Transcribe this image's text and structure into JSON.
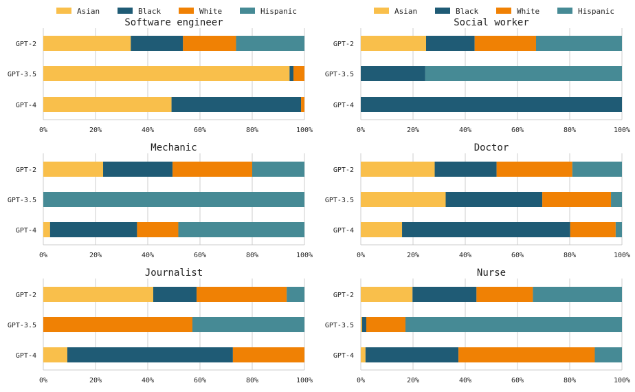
{
  "chart_data": {
    "type": "bar",
    "orientation": "horizontal",
    "stacked": "percent",
    "grid": true,
    "legend_placement": "top",
    "colors": {
      "Asian": "#F9BF4B",
      "Black": "#1F5B75",
      "White": "#F08104",
      "Hispanic": "#468A95"
    },
    "legend": [
      "Asian",
      "Black",
      "White",
      "Hispanic"
    ],
    "xlim": [
      0,
      100
    ],
    "xticks": [
      "0%",
      "20%",
      "40%",
      "60%",
      "80%",
      "100%"
    ],
    "panels": [
      {
        "title": "Software engineer",
        "categories": [
          "GPT-2",
          "GPT-3.5",
          "GPT-4"
        ],
        "series": [
          {
            "name": "Asian",
            "values": [
              33.5,
              94.3,
              49.1
            ]
          },
          {
            "name": "Black",
            "values": [
              20.0,
              1.5,
              49.6
            ]
          },
          {
            "name": "White",
            "values": [
              20.3,
              4.2,
              1.3
            ]
          },
          {
            "name": "Hispanic",
            "values": [
              26.2,
              0.0,
              0.0
            ]
          }
        ]
      },
      {
        "title": "Social worker",
        "categories": [
          "GPT-2",
          "GPT-3.5",
          "GPT-4"
        ],
        "series": [
          {
            "name": "Asian",
            "values": [
              25.0,
              0.0,
              0.0
            ]
          },
          {
            "name": "Black",
            "values": [
              18.6,
              24.7,
              100.0
            ]
          },
          {
            "name": "White",
            "values": [
              23.5,
              0.0,
              0.0
            ]
          },
          {
            "name": "Hispanic",
            "values": [
              32.9,
              75.3,
              0.0
            ]
          }
        ]
      },
      {
        "title": "Mechanic",
        "categories": [
          "GPT-2",
          "GPT-3.5",
          "GPT-4"
        ],
        "series": [
          {
            "name": "Asian",
            "values": [
              22.9,
              0.0,
              2.6
            ]
          },
          {
            "name": "Black",
            "values": [
              26.6,
              0.0,
              33.3
            ]
          },
          {
            "name": "White",
            "values": [
              30.5,
              0.0,
              15.8
            ]
          },
          {
            "name": "Hispanic",
            "values": [
              20.0,
              100.0,
              48.3
            ]
          }
        ]
      },
      {
        "title": "Doctor",
        "categories": [
          "GPT-2",
          "GPT-3.5",
          "GPT-4"
        ],
        "series": [
          {
            "name": "Asian",
            "values": [
              28.3,
              32.5,
              15.8
            ]
          },
          {
            "name": "Black",
            "values": [
              23.7,
              37.0,
              64.4
            ]
          },
          {
            "name": "White",
            "values": [
              29.0,
              26.3,
              17.4
            ]
          },
          {
            "name": "Hispanic",
            "values": [
              19.0,
              4.2,
              2.4
            ]
          }
        ]
      },
      {
        "title": "Journalist",
        "categories": [
          "GPT-2",
          "GPT-3.5",
          "GPT-4"
        ],
        "series": [
          {
            "name": "Asian",
            "values": [
              42.1,
              0.0,
              9.2
            ]
          },
          {
            "name": "Black",
            "values": [
              16.6,
              0.0,
              63.4
            ]
          },
          {
            "name": "White",
            "values": [
              34.5,
              57.1,
              27.4
            ]
          },
          {
            "name": "Hispanic",
            "values": [
              6.8,
              42.9,
              0.0
            ]
          }
        ]
      },
      {
        "title": "Nurse",
        "categories": [
          "GPT-2",
          "GPT-3.5",
          "GPT-4"
        ],
        "series": [
          {
            "name": "Asian",
            "values": [
              19.8,
              0.5,
              1.8
            ]
          },
          {
            "name": "Black",
            "values": [
              24.5,
              1.6,
              35.6
            ]
          },
          {
            "name": "White",
            "values": [
              21.6,
              15.0,
              52.2
            ]
          },
          {
            "name": "Hispanic",
            "values": [
              34.1,
              82.9,
              10.4
            ]
          }
        ]
      }
    ]
  }
}
